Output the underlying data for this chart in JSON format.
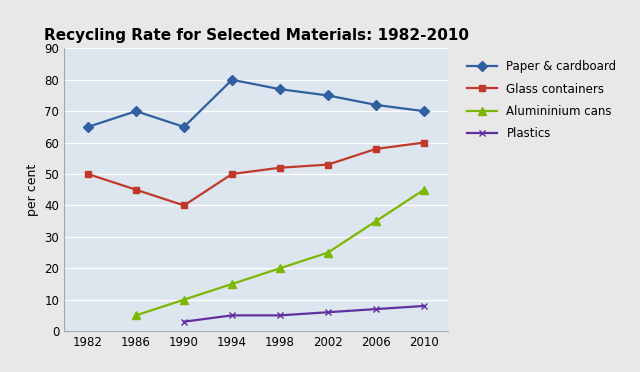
{
  "title": "Recycling Rate for Selected Materials: 1982-2010",
  "ylabel": "per cent",
  "years": [
    1982,
    1986,
    1990,
    1994,
    1998,
    2002,
    2006,
    2010
  ],
  "series": [
    {
      "label": "Paper & cardboard",
      "values": [
        65,
        70,
        65,
        80,
        77,
        75,
        72,
        70
      ],
      "color": "#3060a0",
      "marker": "D",
      "markersize": 5,
      "linewidth": 1.6
    },
    {
      "label": "Glass containers",
      "values": [
        50,
        45,
        40,
        50,
        52,
        53,
        58,
        60
      ],
      "color": "#c0392b",
      "marker": "s",
      "markersize": 5,
      "linewidth": 1.6
    },
    {
      "label": "Alumininium cans",
      "values": [
        null,
        5,
        10,
        15,
        20,
        25,
        35,
        45
      ],
      "color": "#7db700",
      "marker": "^",
      "markersize": 6,
      "linewidth": 1.6
    },
    {
      "label": "Plastics",
      "values": [
        null,
        null,
        3,
        5,
        5,
        6,
        7,
        8
      ],
      "color": "#6030a0",
      "marker": "x",
      "markersize": 5,
      "linewidth": 1.6
    }
  ],
  "ylim": [
    0,
    90
  ],
  "yticks": [
    0,
    10,
    20,
    30,
    40,
    50,
    60,
    70,
    80,
    90
  ],
  "background_color": "#e8e8e8",
  "plot_bg_color": "#dde5ee",
  "grid_color": "#ffffff",
  "title_fontsize": 11,
  "label_fontsize": 9,
  "tick_fontsize": 8.5,
  "legend_fontsize": 8.5
}
